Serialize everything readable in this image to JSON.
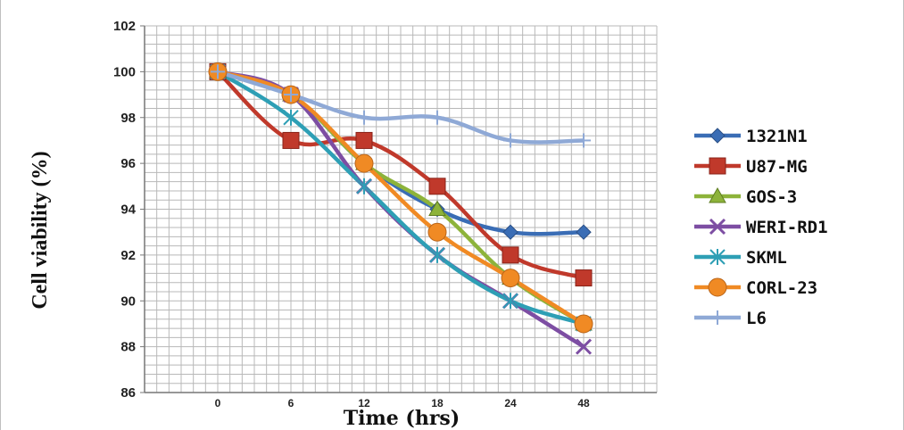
{
  "chart_data": {
    "type": "line",
    "title": "",
    "xlabel": "Time (hrs)",
    "ylabel": "Cell viability (%)",
    "categories": [
      "0",
      "6",
      "12",
      "18",
      "24",
      "48"
    ],
    "ylim": [
      86,
      102
    ],
    "yticks": [
      "86",
      "88",
      "90",
      "92",
      "94",
      "96",
      "98",
      "100",
      "102"
    ],
    "grid": true,
    "legend_position": "right",
    "series": [
      {
        "name": "1321N1",
        "color": "#3a6db5",
        "marker": "diamond",
        "values": [
          100,
          99,
          96,
          94,
          93,
          93
        ]
      },
      {
        "name": "U87-MG",
        "color": "#c0392b",
        "marker": "square",
        "values": [
          100,
          97,
          97,
          95,
          92,
          91
        ]
      },
      {
        "name": "GOS-3",
        "color": "#8db33a",
        "marker": "triangle",
        "values": [
          100,
          99,
          96,
          94,
          91,
          89
        ]
      },
      {
        "name": "WERI-RD1",
        "color": "#7d4ea3",
        "marker": "x",
        "values": [
          100,
          99,
          95,
          92,
          90,
          88
        ]
      },
      {
        "name": "SKML",
        "color": "#2e9fb5",
        "marker": "star",
        "values": [
          100,
          98,
          95,
          92,
          90,
          89
        ]
      },
      {
        "name": "CORL-23",
        "color": "#f08a24",
        "marker": "circle",
        "values": [
          100,
          99,
          96,
          93,
          91,
          89
        ]
      },
      {
        "name": "L6",
        "color": "#8fa9d6",
        "marker": "plus",
        "values": [
          100,
          99,
          98,
          98,
          97,
          97
        ]
      }
    ]
  }
}
